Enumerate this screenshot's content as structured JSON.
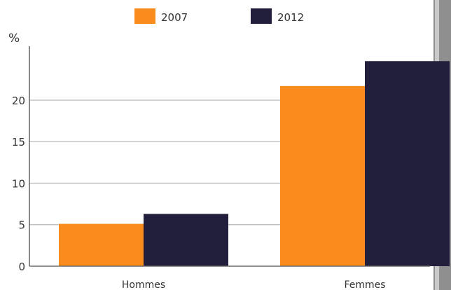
{
  "chart_data": {
    "type": "bar",
    "title": "",
    "xlabel": "",
    "ylabel": "%",
    "categories": [
      "Hommes",
      "Femmes"
    ],
    "series": [
      {
        "name": "2007",
        "values": [
          5.1,
          21.7
        ]
      },
      {
        "name": "2012",
        "values": [
          6.3,
          24.7
        ]
      }
    ],
    "ylim": [
      0,
      27
    ],
    "yticks": [
      0,
      5,
      10,
      15,
      20
    ],
    "grid": true,
    "legend_position": "top",
    "colors": {
      "series": [
        "#fa8c1e",
        "#221f3d"
      ],
      "grid": "#b8b8b8",
      "axis": "#6d6d6d",
      "text": "#333333",
      "edge_bar": "#8f8f8f"
    }
  }
}
